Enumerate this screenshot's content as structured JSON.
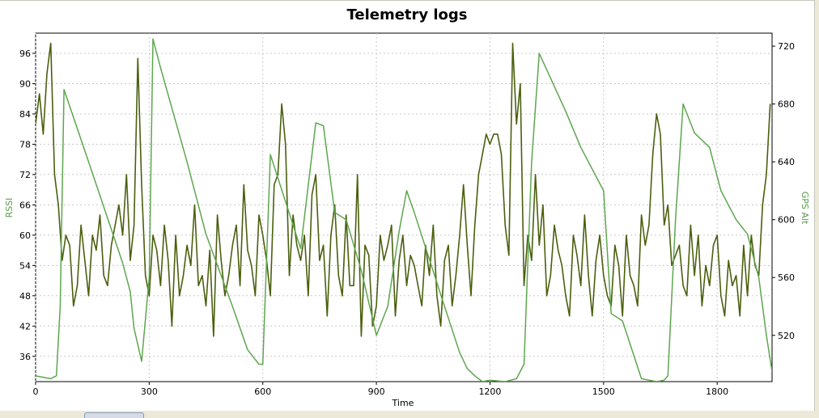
{
  "chart_data": {
    "type": "line",
    "title": "Telemetry logs",
    "xlabel": "Time",
    "ylabel_left": "RSSI",
    "ylabel_right": "GPS Alt",
    "xlim": [
      0,
      1945
    ],
    "ylim_left": [
      31,
      100
    ],
    "ylim_right": [
      488,
      729
    ],
    "x_ticks": [
      0,
      300,
      600,
      900,
      1200,
      1500,
      1800
    ],
    "y_ticks_left": [
      36,
      42,
      48,
      54,
      60,
      66,
      72,
      78,
      84,
      90,
      96
    ],
    "y_ticks_right": [
      520,
      560,
      600,
      640,
      680,
      720
    ],
    "grid": true,
    "series": [
      {
        "name": "RSSI",
        "axis": "left",
        "color": "#4b5f0e",
        "x": [
          0,
          10,
          20,
          30,
          40,
          50,
          60,
          70,
          80,
          90,
          100,
          110,
          120,
          130,
          140,
          150,
          160,
          170,
          180,
          190,
          200,
          210,
          220,
          230,
          240,
          250,
          260,
          270,
          280,
          290,
          300,
          310,
          320,
          330,
          340,
          350,
          360,
          370,
          380,
          390,
          400,
          410,
          420,
          430,
          440,
          450,
          460,
          470,
          480,
          490,
          500,
          510,
          520,
          530,
          540,
          550,
          560,
          570,
          580,
          590,
          600,
          610,
          620,
          630,
          640,
          650,
          660,
          670,
          680,
          690,
          700,
          710,
          720,
          730,
          740,
          750,
          760,
          770,
          780,
          790,
          800,
          810,
          820,
          830,
          840,
          850,
          860,
          870,
          880,
          890,
          900,
          910,
          920,
          930,
          940,
          950,
          960,
          970,
          980,
          990,
          1000,
          1010,
          1020,
          1030,
          1040,
          1050,
          1060,
          1070,
          1080,
          1090,
          1100,
          1110,
          1120,
          1130,
          1140,
          1150,
          1160,
          1170,
          1180,
          1190,
          1200,
          1210,
          1220,
          1230,
          1240,
          1250,
          1260,
          1270,
          1280,
          1290,
          1300,
          1310,
          1320,
          1330,
          1340,
          1350,
          1360,
          1370,
          1380,
          1390,
          1400,
          1410,
          1420,
          1430,
          1440,
          1450,
          1460,
          1470,
          1480,
          1490,
          1500,
          1510,
          1520,
          1530,
          1540,
          1550,
          1560,
          1570,
          1580,
          1590,
          1600,
          1610,
          1620,
          1630,
          1640,
          1650,
          1660,
          1670,
          1680,
          1690,
          1700,
          1710,
          1720,
          1730,
          1740,
          1750,
          1760,
          1770,
          1780,
          1790,
          1800,
          1810,
          1820,
          1830,
          1840,
          1850,
          1860,
          1870,
          1880,
          1890,
          1900,
          1910,
          1920,
          1930,
          1940
        ],
        "values": [
          82,
          88,
          80,
          92,
          98,
          72,
          66,
          55,
          60,
          58,
          46,
          50,
          62,
          55,
          48,
          60,
          57,
          64,
          52,
          50,
          58,
          62,
          66,
          60,
          72,
          55,
          62,
          95,
          70,
          52,
          48,
          60,
          57,
          50,
          62,
          55,
          42,
          60,
          48,
          52,
          58,
          54,
          66,
          50,
          52,
          46,
          57,
          40,
          64,
          55,
          48,
          52,
          58,
          62,
          50,
          70,
          57,
          54,
          48,
          64,
          60,
          55,
          48,
          70,
          72,
          86,
          78,
          52,
          64,
          58,
          55,
          60,
          48,
          68,
          72,
          55,
          58,
          44,
          60,
          66,
          52,
          48,
          64,
          50,
          50,
          72,
          40,
          58,
          56,
          42,
          46,
          60,
          55,
          58,
          62,
          44,
          55,
          60,
          50,
          56,
          54,
          50,
          46,
          58,
          52,
          62,
          48,
          42,
          55,
          58,
          46,
          52,
          60,
          70,
          58,
          48,
          62,
          72,
          76,
          80,
          78,
          80,
          80,
          76,
          62,
          56,
          98,
          82,
          90,
          50,
          60,
          55,
          72,
          58,
          66,
          48,
          52,
          62,
          57,
          54,
          48,
          44,
          60,
          56,
          50,
          64,
          52,
          44,
          55,
          60,
          52,
          48,
          46,
          58,
          54,
          44,
          60,
          52,
          50,
          46,
          64,
          58,
          62,
          76,
          84,
          80,
          62,
          66,
          54,
          56,
          58,
          50,
          48,
          62,
          52,
          60,
          46,
          54,
          50,
          58,
          60,
          48,
          44,
          55,
          50,
          52,
          44,
          58,
          48,
          60,
          54,
          52,
          66,
          72,
          86
        ]
      },
      {
        "name": "GPS Alt",
        "axis": "right",
        "color": "#5ea64f",
        "x": [
          0,
          20,
          40,
          55,
          65,
          75,
          140,
          230,
          250,
          260,
          280,
          300,
          310,
          330,
          400,
          450,
          520,
          560,
          590,
          600,
          620,
          700,
          740,
          760,
          790,
          820,
          860,
          900,
          930,
          960,
          980,
          1000,
          1080,
          1120,
          1140,
          1160,
          1180,
          1200,
          1240,
          1270,
          1290,
          1310,
          1330,
          1400,
          1440,
          1500,
          1520,
          1550,
          1600,
          1640,
          1660,
          1670,
          1690,
          1710,
          1740,
          1780,
          1810,
          1850,
          1880,
          1910,
          1930,
          1945
        ],
        "values": [
          492,
          491,
          490,
          492,
          540,
          690,
          640,
          570,
          550,
          525,
          502,
          560,
          725,
          705,
          640,
          590,
          540,
          510,
          500,
          500,
          645,
          580,
          667,
          665,
          605,
          600,
          565,
          520,
          540,
          592,
          620,
          605,
          540,
          508,
          497,
          492,
          488,
          489,
          488,
          490,
          500,
          640,
          715,
          675,
          650,
          620,
          535,
          530,
          490,
          488,
          489,
          492,
          600,
          680,
          660,
          650,
          620,
          600,
          590,
          560,
          520,
          495
        ]
      }
    ]
  }
}
